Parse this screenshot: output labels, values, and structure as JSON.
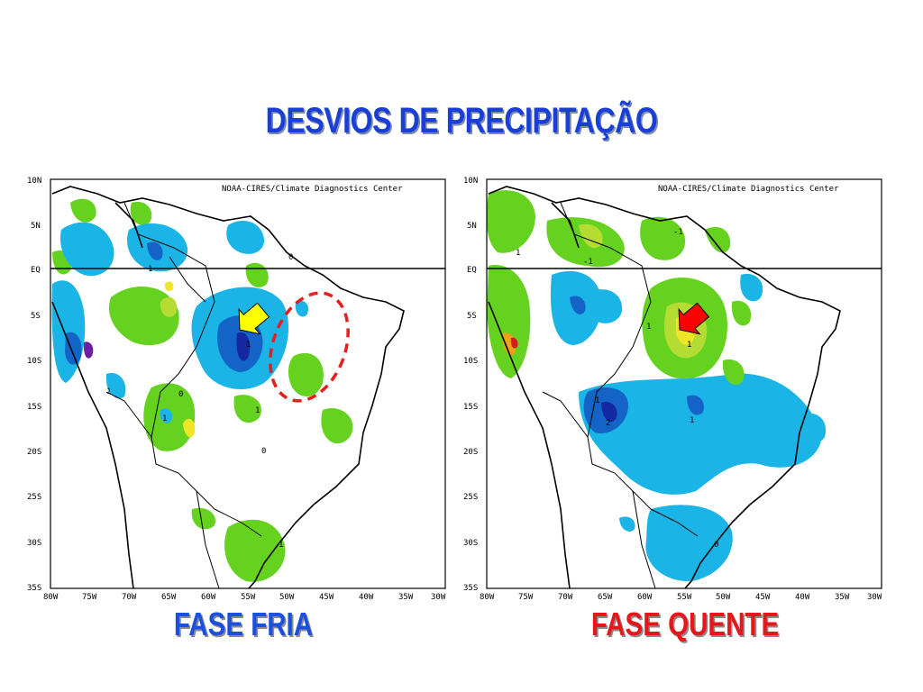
{
  "title": "DESVIOS DE PRECIPITAÇÃO",
  "panels": [
    {
      "caption": "FASE FRIA",
      "credit": "NOAA-CIRES/Climate Diagnostics Center",
      "arrow_color": "#ffff00",
      "caption_color": "#1a4fe0"
    },
    {
      "caption": "FASE QUENTE",
      "credit": "NOAA-CIRES/Climate Diagnostics Center",
      "arrow_color": "#ff0000",
      "caption_color": "#e8161a"
    }
  ],
  "axes": {
    "lat_ticks": [
      "10N",
      "5N",
      "EQ",
      "5S",
      "10S",
      "15S",
      "20S",
      "25S",
      "30S",
      "35S"
    ],
    "lon_ticks": [
      "80W",
      "75W",
      "70W",
      "65W",
      "60W",
      "55W",
      "50W",
      "45W",
      "40W",
      "35W",
      "30W"
    ]
  },
  "contour_labels": {
    "left": [
      "1",
      "1",
      "0",
      "1",
      "1",
      "0",
      "1",
      "1",
      "0"
    ],
    "right": [
      "1",
      "-1",
      "-1",
      "1",
      "1",
      "1",
      "2",
      "1",
      "0"
    ]
  },
  "colors": {
    "light_blue": "#1ab4e6",
    "mid_blue": "#1464c8",
    "dark_blue": "#1428a0",
    "purple": "#6e1ea0",
    "light_green": "#64d21e",
    "yellow_green": "#b4dc32",
    "yellow": "#f0e628",
    "orange": "#f0a014",
    "red": "#d21e1e"
  }
}
